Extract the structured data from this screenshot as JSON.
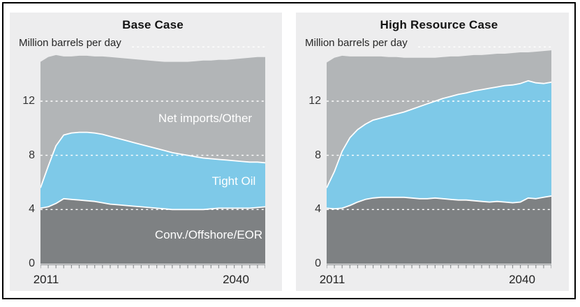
{
  "figure": {
    "background": "#ffffff",
    "frame_color": "#000000",
    "panel_background": "#ededee"
  },
  "years": [
    2011,
    2012,
    2013,
    2014,
    2015,
    2016,
    2017,
    2018,
    2019,
    2020,
    2021,
    2022,
    2023,
    2024,
    2025,
    2026,
    2027,
    2028,
    2029,
    2030,
    2031,
    2032,
    2033,
    2034,
    2035,
    2036,
    2037,
    2038,
    2039,
    2040
  ],
  "chart_data": [
    {
      "type": "area",
      "stacked": true,
      "title": "Base Case",
      "unit_label": "Million barrels per day",
      "xlabel": "",
      "ylabel": "Million barrels per day",
      "ylim": [
        0,
        16
      ],
      "y_ticks": [
        0,
        4,
        8,
        12
      ],
      "y_tick_labels": [
        "12",
        "8",
        "4",
        "0"
      ],
      "x_tick_labels": [
        "2011",
        "2040"
      ],
      "gridlines": [
        4,
        8,
        12,
        16
      ],
      "grid_style": "white-dashed",
      "legend_position": "labels-inside-areas",
      "series": [
        {
          "name": "Conv./Offshore/EOR",
          "color": "#7e8183",
          "values": [
            4.1,
            4.2,
            4.45,
            4.8,
            4.75,
            4.7,
            4.65,
            4.6,
            4.5,
            4.4,
            4.35,
            4.3,
            4.25,
            4.2,
            4.15,
            4.1,
            4.05,
            4.0,
            4.0,
            4.0,
            4.0,
            4.0,
            4.05,
            4.1,
            4.1,
            4.1,
            4.1,
            4.1,
            4.15,
            4.2
          ]
        },
        {
          "name": "Tight Oil",
          "color": "#7ec9e8",
          "values": [
            1.5,
            3.0,
            4.25,
            4.7,
            4.9,
            5.0,
            5.05,
            5.05,
            5.05,
            5.0,
            4.9,
            4.8,
            4.7,
            4.6,
            4.5,
            4.4,
            4.3,
            4.2,
            4.1,
            4.0,
            3.9,
            3.8,
            3.7,
            3.6,
            3.55,
            3.5,
            3.45,
            3.4,
            3.35,
            3.25
          ]
        },
        {
          "name": "Net imports/Other",
          "color": "#b2b5b7",
          "values": [
            9.3,
            8.05,
            6.7,
            5.8,
            5.65,
            5.65,
            5.65,
            5.65,
            5.75,
            5.85,
            5.95,
            6.05,
            6.15,
            6.25,
            6.35,
            6.45,
            6.55,
            6.7,
            6.8,
            6.9,
            7.05,
            7.2,
            7.25,
            7.35,
            7.4,
            7.5,
            7.6,
            7.7,
            7.75,
            7.8
          ]
        }
      ]
    },
    {
      "type": "area",
      "stacked": true,
      "title": "High Resource Case",
      "unit_label": "Million barrels per day",
      "xlabel": "",
      "ylabel": "Million barrels per day",
      "ylim": [
        0,
        16
      ],
      "y_ticks": [
        0,
        4,
        8,
        12
      ],
      "y_tick_labels": [
        "12",
        "8",
        "4",
        "0"
      ],
      "x_tick_labels": [
        "2011",
        "2040"
      ],
      "gridlines": [
        4,
        8,
        12,
        16
      ],
      "grid_style": "white-dashed",
      "legend_position": "none",
      "series": [
        {
          "name": "Conv./Offshore/EOR",
          "color": "#7e8183",
          "values": [
            4.1,
            4.05,
            4.1,
            4.3,
            4.55,
            4.75,
            4.85,
            4.9,
            4.9,
            4.9,
            4.9,
            4.85,
            4.8,
            4.8,
            4.85,
            4.8,
            4.75,
            4.7,
            4.7,
            4.65,
            4.6,
            4.55,
            4.6,
            4.55,
            4.5,
            4.55,
            4.85,
            4.8,
            4.9,
            5.0
          ]
        },
        {
          "name": "Tight Oil",
          "color": "#7ec9e8",
          "values": [
            1.5,
            2.75,
            4.2,
            5.0,
            5.35,
            5.55,
            5.75,
            5.85,
            6.0,
            6.15,
            6.3,
            6.55,
            6.8,
            7.0,
            7.15,
            7.4,
            7.6,
            7.8,
            7.9,
            8.1,
            8.25,
            8.4,
            8.45,
            8.6,
            8.7,
            8.75,
            8.65,
            8.55,
            8.4,
            8.4
          ]
        },
        {
          "name": "Net imports/Other",
          "color": "#b2b5b7",
          "values": [
            9.25,
            8.4,
            7.05,
            6.0,
            5.4,
            5.0,
            4.7,
            4.55,
            4.35,
            4.2,
            4.0,
            3.8,
            3.6,
            3.4,
            3.2,
            3.05,
            2.95,
            2.8,
            2.75,
            2.65,
            2.55,
            2.5,
            2.45,
            2.35,
            2.35,
            2.3,
            2.1,
            2.3,
            2.4,
            2.35
          ]
        }
      ]
    }
  ]
}
